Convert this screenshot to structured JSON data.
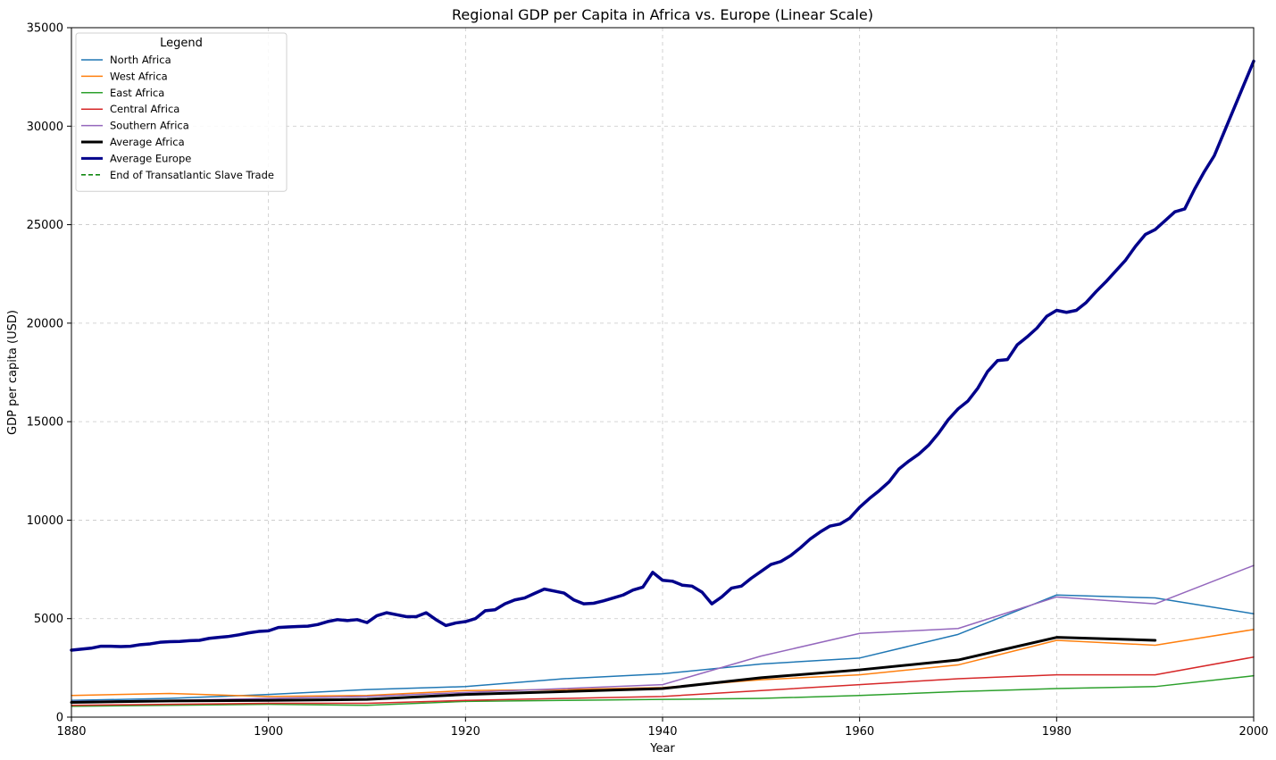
{
  "chart_data": {
    "type": "line",
    "title": "Regional GDP per Capita in Africa vs. Europe (Linear Scale)",
    "xlabel": "Year",
    "ylabel": "GDP per capita (USD)",
    "xlim": [
      1880,
      2000
    ],
    "ylim": [
      0,
      35000
    ],
    "xticks": [
      1880,
      1900,
      1920,
      1940,
      1960,
      1980,
      2000
    ],
    "yticks": [
      0,
      5000,
      10000,
      15000,
      20000,
      25000,
      30000,
      35000
    ],
    "grid": true,
    "legend": {
      "title": "Legend",
      "placement": "top-left"
    },
    "series": [
      {
        "name": "North Africa",
        "color": "#1f77b4",
        "width": 1.5,
        "x": [
          1880,
          1890,
          1900,
          1910,
          1920,
          1930,
          1940,
          1950,
          1960,
          1970,
          1980,
          1990,
          2000
        ],
        "y": [
          850,
          950,
          1150,
          1400,
          1550,
          1950,
          2200,
          2700,
          3000,
          4200,
          6200,
          6050,
          5250
        ]
      },
      {
        "name": "West Africa",
        "color": "#ff7f0e",
        "width": 1.5,
        "x": [
          1880,
          1890,
          1900,
          1910,
          1920,
          1930,
          1940,
          1950,
          1960,
          1970,
          1980,
          1990,
          2000
        ],
        "y": [
          1100,
          1200,
          1050,
          1100,
          1350,
          1400,
          1500,
          1900,
          2150,
          2650,
          3900,
          3650,
          4450
        ]
      },
      {
        "name": "East Africa",
        "color": "#2ca02c",
        "width": 1.5,
        "x": [
          1880,
          1890,
          1900,
          1910,
          1920,
          1930,
          1940,
          1950,
          1960,
          1970,
          1980,
          1990,
          2000
        ],
        "y": [
          550,
          600,
          650,
          600,
          800,
          850,
          900,
          950,
          1100,
          1300,
          1450,
          1550,
          2100
        ]
      },
      {
        "name": "Central Africa",
        "color": "#d62728",
        "width": 1.5,
        "x": [
          1880,
          1890,
          1900,
          1910,
          1920,
          1930,
          1940,
          1950,
          1960,
          1970,
          1980,
          1990,
          2000
        ],
        "y": [
          600,
          650,
          700,
          700,
          850,
          950,
          1050,
          1350,
          1650,
          1950,
          2150,
          2150,
          3050
        ]
      },
      {
        "name": "Southern Africa",
        "color": "#9467bd",
        "width": 1.5,
        "x": [
          1880,
          1890,
          1900,
          1910,
          1920,
          1930,
          1940,
          1950,
          1960,
          1970,
          1980,
          1990,
          2000
        ],
        "y": [
          800,
          850,
          950,
          1050,
          1250,
          1450,
          1650,
          3100,
          4250,
          4500,
          6100,
          5750,
          7700
        ]
      },
      {
        "name": "Average Africa",
        "color": "#000000",
        "width": 3,
        "x": [
          1880,
          1890,
          1900,
          1910,
          1920,
          1930,
          1940,
          1950,
          1960,
          1970,
          1980,
          1990
        ],
        "y": [
          750,
          820,
          850,
          900,
          1150,
          1300,
          1450,
          2000,
          2400,
          2900,
          4050,
          3900
        ]
      },
      {
        "name": "Average Europe",
        "color": "#00008b",
        "width": 3.5,
        "x": [
          1880,
          1881,
          1882,
          1883,
          1884,
          1885,
          1886,
          1887,
          1888,
          1889,
          1890,
          1891,
          1892,
          1893,
          1894,
          1895,
          1896,
          1897,
          1898,
          1899,
          1900,
          1901,
          1902,
          1903,
          1904,
          1905,
          1906,
          1907,
          1908,
          1909,
          1910,
          1911,
          1912,
          1913,
          1914,
          1915,
          1916,
          1917,
          1918,
          1919,
          1920,
          1921,
          1922,
          1923,
          1924,
          1925,
          1926,
          1927,
          1928,
          1929,
          1930,
          1931,
          1932,
          1933,
          1934,
          1935,
          1936,
          1937,
          1938,
          1939,
          1940,
          1941,
          1942,
          1943,
          1944,
          1945,
          1946,
          1947,
          1948,
          1949,
          1950,
          1951,
          1952,
          1953,
          1954,
          1955,
          1956,
          1957,
          1958,
          1959,
          1960,
          1961,
          1962,
          1963,
          1964,
          1965,
          1966,
          1967,
          1968,
          1969,
          1970,
          1971,
          1972,
          1973,
          1974,
          1975,
          1976,
          1977,
          1978,
          1979,
          1980,
          1981,
          1982,
          1983,
          1984,
          1985,
          1986,
          1987,
          1988,
          1989,
          1990,
          1991,
          1992,
          1993,
          1994,
          1995,
          1996,
          1997,
          1998,
          1999,
          2000
        ],
        "y": [
          3400,
          3450,
          3500,
          3600,
          3600,
          3580,
          3600,
          3680,
          3720,
          3800,
          3830,
          3840,
          3880,
          3900,
          4000,
          4050,
          4100,
          4180,
          4280,
          4350,
          4380,
          4550,
          4580,
          4600,
          4620,
          4700,
          4850,
          4950,
          4900,
          4950,
          4800,
          5150,
          5300,
          5200,
          5100,
          5100,
          5300,
          4950,
          4650,
          4780,
          4850,
          5000,
          5400,
          5450,
          5750,
          5950,
          6050,
          6280,
          6500,
          6400,
          6300,
          5950,
          5750,
          5780,
          5900,
          6050,
          6200,
          6450,
          6600,
          7350,
          6950,
          6900,
          6700,
          6650,
          6350,
          5750,
          6100,
          6550,
          6650,
          7050,
          7400,
          7750,
          7900,
          8200,
          8600,
          9050,
          9400,
          9700,
          9800,
          10100,
          10650,
          11100,
          11500,
          11950,
          12600,
          13000,
          13350,
          13800,
          14400,
          15100,
          15650,
          16050,
          16700,
          17550,
          18100,
          18150,
          18900,
          19300,
          19750,
          20350,
          20650,
          20550,
          20650,
          21050,
          21600,
          22100,
          22650,
          23200,
          23900,
          24500,
          24750,
          25200,
          25650,
          25800,
          26800,
          27700,
          28500,
          29700,
          30900,
          32100,
          33300
        ]
      },
      {
        "name": "End of Transatlantic Slave Trade",
        "color": "#008000",
        "width": 1.5,
        "dashed": true,
        "x": [],
        "y": []
      }
    ]
  }
}
